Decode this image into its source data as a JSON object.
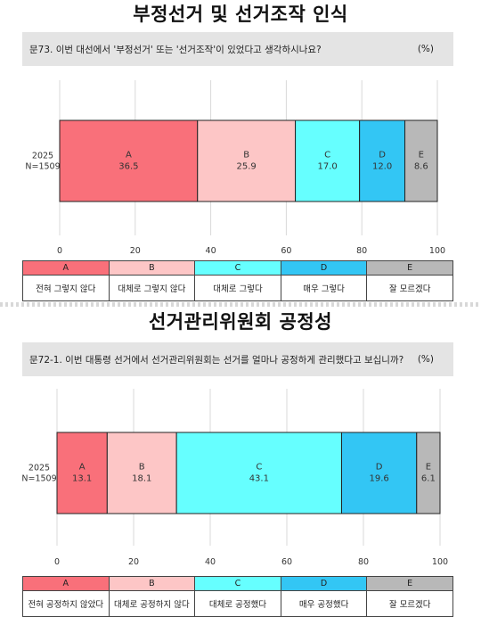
{
  "colors": {
    "A": "#f9707a",
    "B": "#fdc6c6",
    "C": "#66ffff",
    "D": "#33c6f4",
    "E": "#b8b8b8",
    "grid": "#d9d9d9",
    "qbar": "#e4e4e4"
  },
  "panels": [
    {
      "title": "부정선거 및 선거조작 인식",
      "question": "문73. 이번 대선에서 '부정선거' 또는 '선거조작'이 있었다고 생각하시나요?",
      "unit": "(%)",
      "legend": [
        {
          "key": "A",
          "desc": "전혀 그렇지 않다"
        },
        {
          "key": "B",
          "desc": "대체로 그렇지 않다"
        },
        {
          "key": "C",
          "desc": "대체로 그렇다"
        },
        {
          "key": "D",
          "desc": "매우 그렇다"
        },
        {
          "key": "E",
          "desc": "잘 모르겠다"
        }
      ]
    },
    {
      "title": "선거관리위원회 공정성",
      "question": "문72-1. 이번 대통령 선거에서 선거관리위원회는 선거를 얼마나 공정하게 관리했다고 보십니까?",
      "unit": "(%)",
      "legend": [
        {
          "key": "A",
          "desc": "전혀 공정하지 않았다"
        },
        {
          "key": "B",
          "desc": "대체로 공정하지 않다"
        },
        {
          "key": "C",
          "desc": "대체로 공정했다"
        },
        {
          "key": "D",
          "desc": "매우 공정했다"
        },
        {
          "key": "E",
          "desc": "잘 모르겠다"
        }
      ]
    }
  ],
  "chart_data": [
    {
      "type": "bar",
      "orientation": "horizontal",
      "stacked": true,
      "title": "부정선거 및 선거조작 인식",
      "categories": [
        "2025 N=1509"
      ],
      "category_lines": [
        "2025",
        "N=1509"
      ],
      "series": [
        {
          "name": "A",
          "values": [
            36.5
          ]
        },
        {
          "name": "B",
          "values": [
            25.9
          ]
        },
        {
          "name": "C",
          "values": [
            17.0
          ]
        },
        {
          "name": "D",
          "values": [
            12.0
          ]
        },
        {
          "name": "E",
          "values": [
            8.6
          ]
        }
      ],
      "xlim": [
        0,
        100
      ],
      "xticks": [
        "0",
        "20",
        "40",
        "60",
        "80",
        "100"
      ],
      "grid": true
    },
    {
      "type": "bar",
      "orientation": "horizontal",
      "stacked": true,
      "title": "선거관리위원회 공정성",
      "categories": [
        "2025 N=1509"
      ],
      "category_lines": [
        "2025",
        "N=1509"
      ],
      "series": [
        {
          "name": "A",
          "values": [
            13.1
          ]
        },
        {
          "name": "B",
          "values": [
            18.1
          ]
        },
        {
          "name": "C",
          "values": [
            43.1
          ]
        },
        {
          "name": "D",
          "values": [
            19.6
          ]
        },
        {
          "name": "E",
          "values": [
            6.1
          ]
        }
      ],
      "xlim": [
        0,
        100
      ],
      "xticks": [
        "0",
        "20",
        "40",
        "60",
        "80",
        "100"
      ],
      "grid": true
    }
  ]
}
